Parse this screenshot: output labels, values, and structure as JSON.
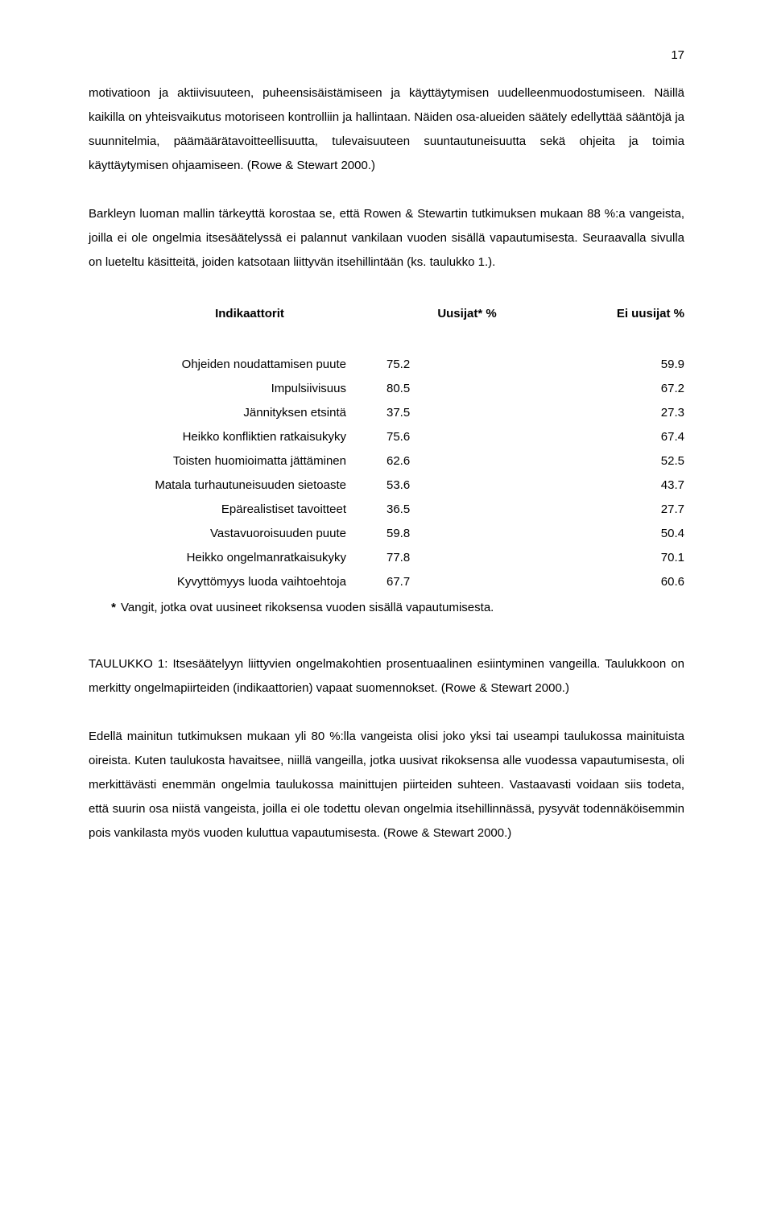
{
  "page_number": "17",
  "paragraphs": {
    "p1": "motivatioon ja aktiivisuuteen, puheensisäistämiseen ja käyttäytymisen uudelleenmuodostumiseen. Näillä kaikilla on yhteisvaikutus motoriseen kontrolliin ja hallintaan. Näiden osa-alueiden säätely edellyttää sääntöjä ja suunnitelmia, päämäärätavoitteellisuutta, tulevaisuuteen suuntautuneisuutta sekä ohjeita ja toimia käyttäytymisen ohjaamiseen. (Rowe & Stewart 2000.)",
    "p2": "Barkleyn luoman mallin tärkeyttä korostaa se, että Rowen & Stewartin tutkimuksen mukaan 88 %:a vangeista, joilla ei ole ongelmia itsesäätelyssä ei palannut vankilaan vuoden sisällä vapautumisesta. Seuraavalla sivulla on lueteltu käsitteitä, joiden katsotaan liittyvän itsehillintään (ks. taulukko 1.).",
    "p3": "TAULUKKO 1: Itsesäätelyyn liittyvien ongelmakohtien prosentuaalinen esiintyminen vangeilla. Taulukkoon on merkitty ongelmapiirteiden (indikaattorien) vapaat suomennokset. (Rowe & Stewart 2000.)",
    "p4": "Edellä mainitun tutkimuksen mukaan yli 80 %:lla vangeista olisi joko yksi tai useampi taulukossa mainituista oireista. Kuten taulukosta havaitsee, niillä vangeilla, jotka uusivat rikoksensa alle vuodessa vapautumisesta, oli merkittävästi enemmän ongelmia taulukossa mainittujen piirteiden suhteen. Vastaavasti voidaan siis todeta, että suurin osa niistä vangeista, joilla ei ole todettu olevan ongelmia itsehillinnässä, pysyvät todennäköisemmin pois vankilasta myös vuoden kuluttua vapautumisesta. (Rowe & Stewart 2000.)"
  },
  "table": {
    "headers": {
      "indicator": "Indikaattorit",
      "uusijat": "Uusijat* %",
      "ei_uusijat": "Ei uusijat %"
    },
    "rows": [
      {
        "indicator": "Ohjeiden noudattamisen puute",
        "u": "75.2",
        "ei": "59.9"
      },
      {
        "indicator": "Impulsiivisuus",
        "u": "80.5",
        "ei": "67.2"
      },
      {
        "indicator": "Jännityksen etsintä",
        "u": "37.5",
        "ei": "27.3"
      },
      {
        "indicator": "Heikko konfliktien ratkaisukyky",
        "u": "75.6",
        "ei": "67.4"
      },
      {
        "indicator": "Toisten huomioimatta jättäminen",
        "u": "62.6",
        "ei": "52.5"
      },
      {
        "indicator": "Matala turhautuneisuuden sietoaste",
        "u": "53.6",
        "ei": "43.7"
      },
      {
        "indicator": "Epärealistiset tavoitteet",
        "u": "36.5",
        "ei": "27.7"
      },
      {
        "indicator": "Vastavuoroisuuden puute",
        "u": "59.8",
        "ei": "50.4"
      },
      {
        "indicator": "Heikko ongelmanratkaisukyky",
        "u": "77.8",
        "ei": "70.1"
      },
      {
        "indicator": "Kyvyttömyys luoda vaihtoehtoja",
        "u": "67.7",
        "ei": "60.6"
      }
    ],
    "footnote_mark": "*",
    "footnote": "Vangit, jotka ovat uusineet rikoksensa vuoden sisällä vapautumisesta."
  }
}
